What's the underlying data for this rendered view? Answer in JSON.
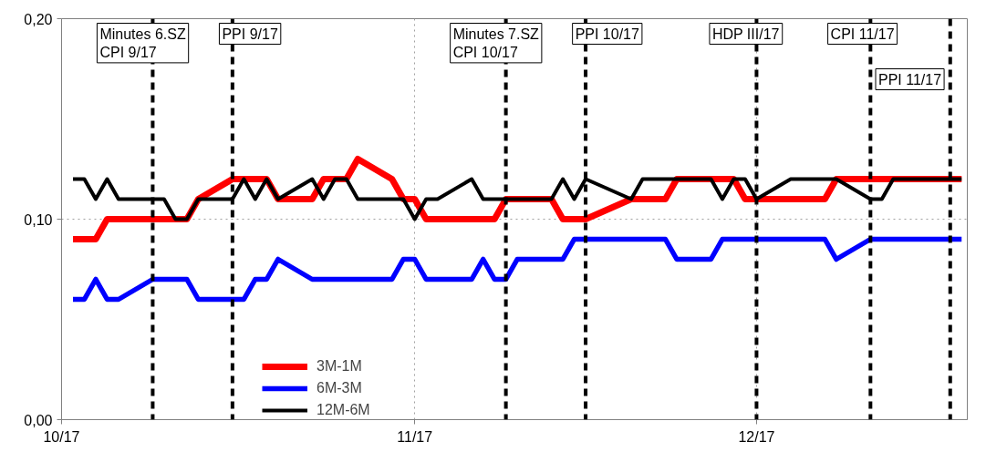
{
  "chart_data": {
    "type": "line",
    "xlim": [
      "2017-10-01",
      "2017-12-19T12:00"
    ],
    "xticks": [
      {
        "value": "2017-10-01",
        "label": "10/17"
      },
      {
        "value": "2017-11-01",
        "label": "11/17"
      },
      {
        "value": "2017-12-01",
        "label": "12/17"
      }
    ],
    "ylim": [
      0,
      0.2
    ],
    "yticks": [
      {
        "value": 0,
        "label": "0,00"
      },
      {
        "value": 0.1,
        "label": "0,10"
      },
      {
        "value": 0.2,
        "label": "0,20"
      }
    ],
    "grid": true,
    "legend": "bottom left",
    "line_style": "solid",
    "marker": "none",
    "series": [
      {
        "name": "3M-1M",
        "color": "#ff0000",
        "x": [
          "2017-10-02",
          "2017-10-04",
          "2017-10-05",
          "2017-10-12",
          "2017-10-13",
          "2017-10-16",
          "2017-10-19",
          "2017-10-20",
          "2017-10-23",
          "2017-10-24",
          "2017-10-26",
          "2017-10-27",
          "2017-10-30",
          "2017-10-31",
          "2017-11-01",
          "2017-11-02",
          "2017-11-08",
          "2017-11-09",
          "2017-11-13",
          "2017-11-14",
          "2017-11-16",
          "2017-11-20",
          "2017-11-23",
          "2017-11-24",
          "2017-11-29",
          "2017-11-30",
          "2017-12-07",
          "2017-12-08",
          "2017-12-19"
        ],
        "values": [
          0.09,
          0.09,
          0.1,
          0.1,
          0.11,
          0.12,
          0.12,
          0.11,
          0.11,
          0.12,
          0.12,
          0.13,
          0.12,
          0.11,
          0.11,
          0.1,
          0.1,
          0.11,
          0.11,
          0.1,
          0.1,
          0.11,
          0.11,
          0.12,
          0.12,
          0.11,
          0.11,
          0.12,
          0.12
        ]
      },
      {
        "name": "6M-3M",
        "color": "#0000ff",
        "x": [
          "2017-10-02",
          "2017-10-03",
          "2017-10-04",
          "2017-10-05",
          "2017-10-06",
          "2017-10-09",
          "2017-10-12",
          "2017-10-13",
          "2017-10-17",
          "2017-10-18",
          "2017-10-19",
          "2017-10-20",
          "2017-10-23",
          "2017-10-30",
          "2017-10-31",
          "2017-11-01",
          "2017-11-02",
          "2017-11-06",
          "2017-11-07",
          "2017-11-08",
          "2017-11-09",
          "2017-11-10",
          "2017-11-14",
          "2017-11-15",
          "2017-11-23",
          "2017-11-24",
          "2017-11-27",
          "2017-11-28",
          "2017-12-07",
          "2017-12-08",
          "2017-12-11",
          "2017-12-19"
        ],
        "values": [
          0.06,
          0.06,
          0.07,
          0.06,
          0.06,
          0.07,
          0.07,
          0.06,
          0.06,
          0.07,
          0.07,
          0.08,
          0.07,
          0.07,
          0.08,
          0.08,
          0.07,
          0.07,
          0.08,
          0.07,
          0.07,
          0.08,
          0.08,
          0.09,
          0.09,
          0.08,
          0.08,
          0.09,
          0.09,
          0.08,
          0.09,
          0.09
        ]
      },
      {
        "name": "12M-6M",
        "color": "#000000",
        "x": [
          "2017-10-02",
          "2017-10-03",
          "2017-10-04",
          "2017-10-05",
          "2017-10-06",
          "2017-10-10",
          "2017-10-11",
          "2017-10-12",
          "2017-10-13",
          "2017-10-16",
          "2017-10-17",
          "2017-10-18",
          "2017-10-19",
          "2017-10-20",
          "2017-10-23",
          "2017-10-24",
          "2017-10-25",
          "2017-10-26",
          "2017-10-27",
          "2017-10-31",
          "2017-11-01",
          "2017-11-02",
          "2017-11-03",
          "2017-11-06",
          "2017-11-07",
          "2017-11-13",
          "2017-11-14",
          "2017-11-15",
          "2017-11-16",
          "2017-11-20",
          "2017-11-21",
          "2017-11-27",
          "2017-11-28",
          "2017-11-29",
          "2017-11-30",
          "2017-12-01",
          "2017-12-04",
          "2017-12-08",
          "2017-12-11",
          "2017-12-12",
          "2017-12-13",
          "2017-12-19"
        ],
        "values": [
          0.12,
          0.12,
          0.11,
          0.12,
          0.11,
          0.11,
          0.1,
          0.1,
          0.11,
          0.11,
          0.12,
          0.11,
          0.12,
          0.11,
          0.12,
          0.11,
          0.12,
          0.12,
          0.11,
          0.11,
          0.1,
          0.11,
          0.11,
          0.12,
          0.11,
          0.11,
          0.12,
          0.11,
          0.12,
          0.11,
          0.12,
          0.12,
          0.11,
          0.12,
          0.12,
          0.11,
          0.12,
          0.12,
          0.11,
          0.11,
          0.12,
          0.12
        ]
      }
    ],
    "ref_lines": [
      {
        "axis": "x",
        "value": "2017-10-09",
        "label": "Minutes 6.SZ\nCPI 9/17",
        "color": "#000000",
        "line_style": "dashed"
      },
      {
        "axis": "x",
        "value": "2017-10-16",
        "label": "PPI 9/17",
        "color": "#000000",
        "line_style": "dashed"
      },
      {
        "axis": "x",
        "value": "2017-11-09",
        "label": "Minutes 7.SZ\nCPI 10/17",
        "color": "#000000",
        "line_style": "dashed"
      },
      {
        "axis": "x",
        "value": "2017-11-16",
        "label": "PPI 10/17",
        "color": "#000000",
        "line_style": "dashed"
      },
      {
        "axis": "x",
        "value": "2017-12-01",
        "label": "HDP III/17",
        "color": "#000000",
        "line_style": "dashed"
      },
      {
        "axis": "x",
        "value": "2017-12-11",
        "label": "CPI 11/17",
        "color": "#000000",
        "line_style": "dashed"
      },
      {
        "axis": "x",
        "value": "2017-12-18",
        "label": "PPI 11/17",
        "color": "#000000",
        "line_style": "dashed"
      }
    ]
  }
}
